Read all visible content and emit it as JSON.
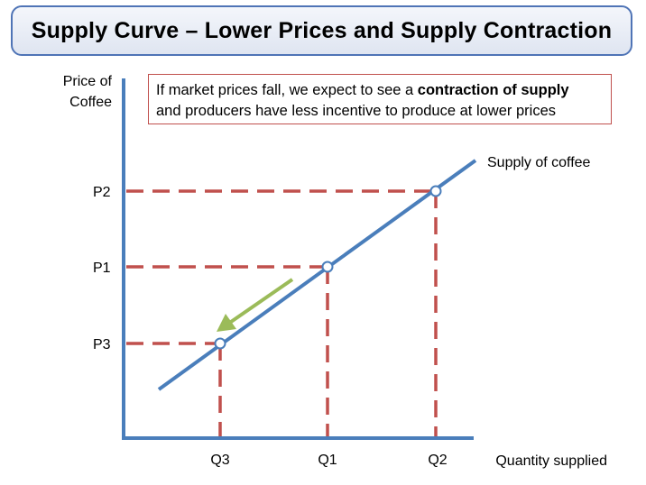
{
  "title": "Supply Curve – Lower Prices and Supply Contraction",
  "callout": {
    "line1_prefix": "If market prices fall, we expect to see a ",
    "line1_bold": "contraction of supply",
    "line2": "and producers have less incentive to produce at lower prices"
  },
  "axes": {
    "y_label_line1": "Price of",
    "y_label_line2": "Coffee",
    "x_label": "Quantity supplied"
  },
  "curve_label": "Supply of coffee",
  "price_labels": [
    "P2",
    "P1",
    "P3"
  ],
  "quantity_labels": [
    "Q3",
    "Q1",
    "Q2"
  ],
  "colors": {
    "axis": "#4a7ebb",
    "curve": "#4a7ebb",
    "guide": "#c0504d",
    "arrow": "#9bbb59",
    "title_border": "#4f74b6",
    "callout_border": "#c0504d"
  }
}
